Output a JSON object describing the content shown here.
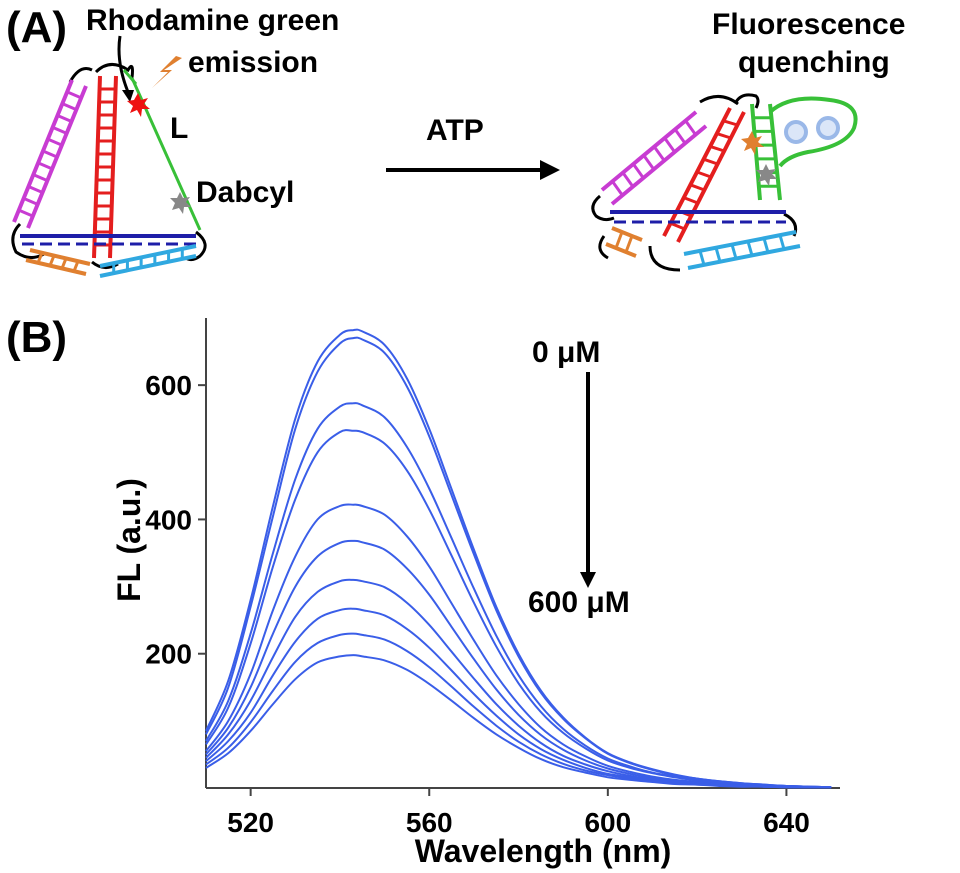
{
  "panel_a": {
    "label": "(A)",
    "rhodamine_label_line1": "Rhodamine green",
    "rhodamine_label_line2": "emission",
    "linker_label": "L",
    "dabcyl_label": "Dabcyl",
    "arrow_label": "ATP",
    "quench_label_line1": "Fluorescence",
    "quench_label_line2": "quenching",
    "colors": {
      "magenta": "#c83cd2",
      "red": "#e41e1e",
      "green": "#38c038",
      "navy": "#1e1ea8",
      "orange": "#e08030",
      "cyan": "#30a8e0",
      "fluorophore": "#ee1111",
      "quencher": "#888888",
      "atp": "#9ab8e8"
    }
  },
  "panel_b": {
    "label": "(B)",
    "top_annotation": "0 μM",
    "bottom_annotation": "600 μM"
  },
  "chart_data": {
    "type": "line",
    "xlabel": "Wavelength (nm)",
    "ylabel": "FL (a.u.)",
    "xlim": [
      510,
      652
    ],
    "ylim": [
      0,
      700
    ],
    "xticks": [
      520,
      560,
      600,
      640
    ],
    "xtick_labels": [
      "520",
      "560",
      "600",
      "640"
    ],
    "yticks": [
      200,
      400,
      600
    ],
    "ytick_labels": [
      "200",
      "400",
      "600"
    ],
    "line_color": "#3a5ee8",
    "peak_wavelength": 543,
    "x": [
      510,
      515,
      520,
      525,
      530,
      535,
      540,
      543,
      545,
      550,
      555,
      560,
      565,
      570,
      575,
      580,
      585,
      590,
      595,
      600,
      605,
      610,
      615,
      620,
      625,
      630,
      635,
      640,
      645,
      650
    ],
    "series": [
      {
        "values": [
          85,
          160,
          280,
          420,
          550,
          635,
          675,
          682,
          680,
          660,
          610,
          535,
          445,
          355,
          270,
          200,
          145,
          105,
          75,
          52,
          38,
          28,
          20,
          14,
          10,
          7,
          5,
          3,
          2,
          1
        ]
      },
      {
        "values": [
          80,
          150,
          270,
          405,
          535,
          620,
          662,
          670,
          668,
          648,
          598,
          524,
          436,
          348,
          265,
          196,
          142,
          103,
          74,
          51,
          37,
          27,
          19,
          14,
          10,
          7,
          5,
          3,
          2,
          1
        ]
      },
      {
        "values": [
          70,
          130,
          230,
          350,
          460,
          535,
          568,
          573,
          570,
          552,
          508,
          446,
          372,
          297,
          227,
          168,
          122,
          88,
          63,
          44,
          32,
          23,
          17,
          12,
          9,
          6,
          4,
          3,
          2,
          1
        ]
      },
      {
        "values": [
          65,
          120,
          215,
          330,
          430,
          500,
          530,
          532,
          530,
          513,
          473,
          415,
          346,
          276,
          211,
          156,
          113,
          82,
          59,
          41,
          30,
          22,
          16,
          11,
          8,
          6,
          4,
          3,
          2,
          1
        ]
      },
      {
        "values": [
          55,
          100,
          170,
          265,
          345,
          400,
          420,
          422,
          420,
          407,
          375,
          330,
          275,
          220,
          168,
          125,
          90,
          65,
          47,
          33,
          24,
          17,
          12,
          9,
          6,
          5,
          3,
          2,
          1,
          1
        ]
      },
      {
        "values": [
          50,
          90,
          150,
          230,
          300,
          345,
          365,
          368,
          366,
          355,
          327,
          288,
          240,
          192,
          147,
          109,
          79,
          57,
          41,
          29,
          21,
          15,
          11,
          8,
          6,
          4,
          3,
          2,
          1,
          1
        ]
      },
      {
        "values": [
          45,
          80,
          130,
          195,
          255,
          292,
          308,
          310,
          308,
          299,
          276,
          243,
          203,
          163,
          125,
          93,
          67,
          48,
          35,
          25,
          18,
          13,
          10,
          7,
          5,
          4,
          3,
          2,
          1,
          1
        ]
      },
      {
        "values": [
          40,
          70,
          112,
          168,
          218,
          252,
          265,
          267,
          265,
          257,
          237,
          209,
          175,
          140,
          108,
          80,
          58,
          42,
          30,
          21,
          16,
          11,
          8,
          6,
          4,
          3,
          2,
          2,
          1,
          1
        ]
      },
      {
        "values": [
          35,
          60,
          98,
          145,
          188,
          216,
          228,
          230,
          228,
          221,
          204,
          180,
          151,
          121,
          93,
          69,
          50,
          36,
          26,
          19,
          14,
          10,
          7,
          5,
          4,
          3,
          2,
          1,
          1,
          1
        ]
      },
      {
        "values": [
          30,
          52,
          85,
          125,
          162,
          187,
          196,
          198,
          196,
          190,
          176,
          155,
          130,
          104,
          80,
          60,
          43,
          31,
          23,
          16,
          12,
          9,
          6,
          5,
          3,
          2,
          2,
          1,
          1,
          1
        ]
      }
    ]
  }
}
